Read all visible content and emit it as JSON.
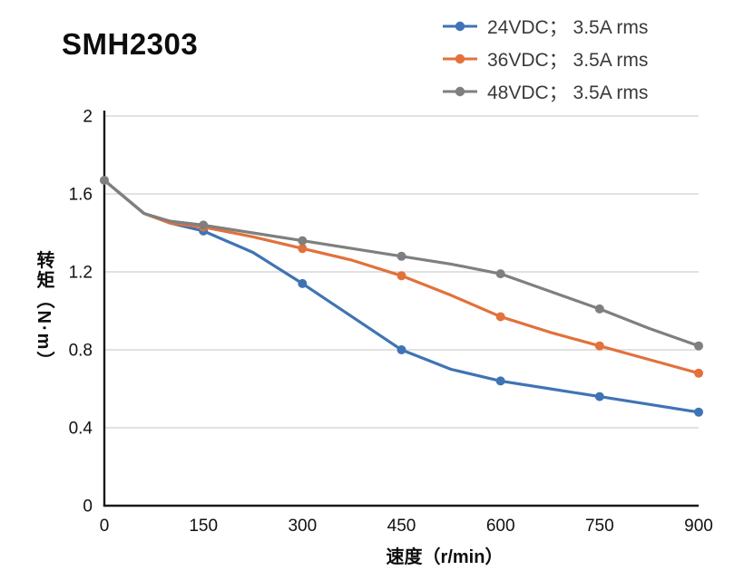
{
  "title": "SMH2303",
  "legend": {
    "items": [
      {
        "label": "24VDC； 3.5A rms",
        "color": "#3F74B4"
      },
      {
        "label": "36VDC； 3.5A rms",
        "color": "#E2713B"
      },
      {
        "label": "48VDC； 3.5A rms",
        "color": "#7F7F7F"
      }
    ]
  },
  "axes": {
    "xlabel": "速度（r/min）",
    "ylabel": "转矩（N·m）"
  },
  "chart_data": {
    "type": "line",
    "title": "SMH2303",
    "xlabel": "速度（r/min）",
    "ylabel": "转矩（N·m）",
    "xlim": [
      0,
      900
    ],
    "ylim": [
      0,
      2
    ],
    "xticks": [
      0,
      150,
      300,
      450,
      600,
      750,
      900
    ],
    "yticks": [
      0,
      0.4,
      0.8,
      1.2,
      1.6,
      2
    ],
    "grid": "horizontal",
    "grid_color": "#d9d9d9",
    "axis_color": "#1a1a1a",
    "legend_position": "top-right",
    "series": [
      {
        "name": "24VDC； 3.5A rms",
        "color": "#3F74B4",
        "x": [
          0,
          60,
          100,
          150,
          225,
          300,
          375,
          450,
          525,
          600,
          675,
          750,
          825,
          900
        ],
        "y": [
          1.67,
          1.5,
          1.45,
          1.41,
          1.3,
          1.14,
          0.97,
          0.8,
          0.7,
          0.64,
          0.6,
          0.56,
          0.52,
          0.48
        ],
        "marker_x": [
          150,
          300,
          450,
          600,
          750,
          900
        ]
      },
      {
        "name": "36VDC； 3.5A rms",
        "color": "#E2713B",
        "x": [
          0,
          60,
          100,
          150,
          225,
          300,
          375,
          450,
          525,
          600,
          675,
          750,
          825,
          900
        ],
        "y": [
          1.67,
          1.5,
          1.45,
          1.43,
          1.38,
          1.32,
          1.26,
          1.18,
          1.08,
          0.97,
          0.89,
          0.82,
          0.75,
          0.68
        ],
        "marker_x": [
          150,
          300,
          450,
          600,
          750,
          900
        ]
      },
      {
        "name": "48VDC； 3.5A rms",
        "color": "#7F7F7F",
        "x": [
          0,
          60,
          100,
          150,
          225,
          300,
          375,
          450,
          525,
          600,
          675,
          750,
          825,
          900
        ],
        "y": [
          1.67,
          1.5,
          1.46,
          1.44,
          1.4,
          1.36,
          1.32,
          1.28,
          1.24,
          1.19,
          1.1,
          1.01,
          0.91,
          0.82
        ],
        "marker_x": [
          0,
          150,
          300,
          450,
          600,
          750,
          900
        ]
      }
    ]
  }
}
